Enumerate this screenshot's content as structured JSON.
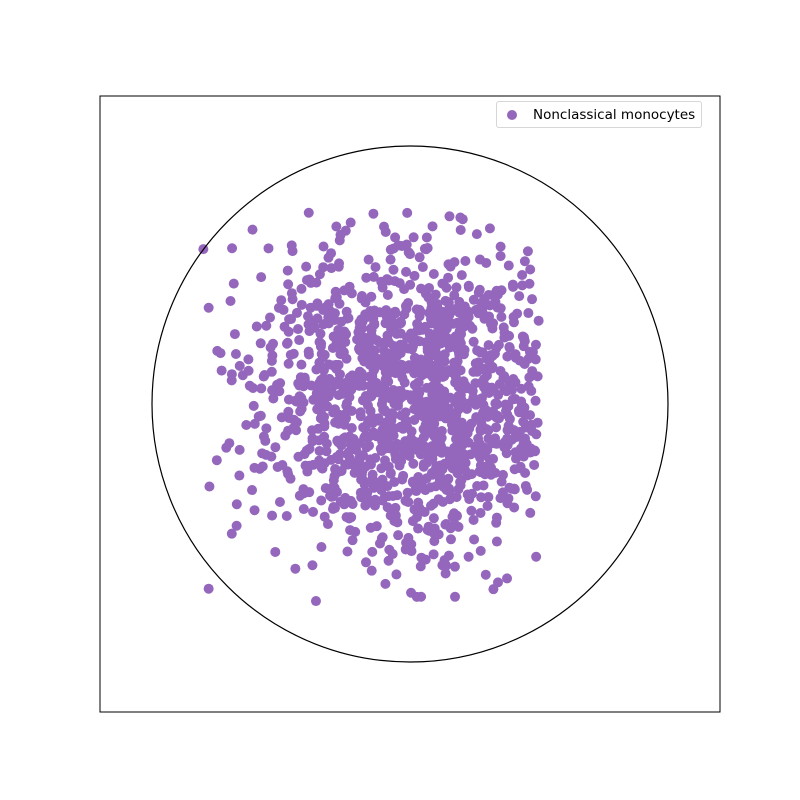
{
  "chart_data": {
    "type": "scatter",
    "title": "",
    "xlabel": "",
    "ylabel": "",
    "xlim": [
      -1.2,
      1.2
    ],
    "ylim": [
      -1.2,
      1.2
    ],
    "grid": false,
    "axes_ticks": false,
    "boundary": {
      "shape": "circle",
      "center": [
        0,
        0
      ],
      "radius": 1.0,
      "color": "#000000"
    },
    "legend": {
      "position": "top-right",
      "entries": [
        "Nonclassical monocytes"
      ]
    },
    "series": [
      {
        "name": "Nonclassical monocytes",
        "color": "#9467bd",
        "n_points": 1400,
        "center": [
          0.02,
          0.02
        ],
        "spread": [
          0.3,
          0.3
        ],
        "extent_x": [
          -0.82,
          0.5
        ],
        "extent_y": [
          -0.77,
          0.75
        ]
      }
    ]
  }
}
